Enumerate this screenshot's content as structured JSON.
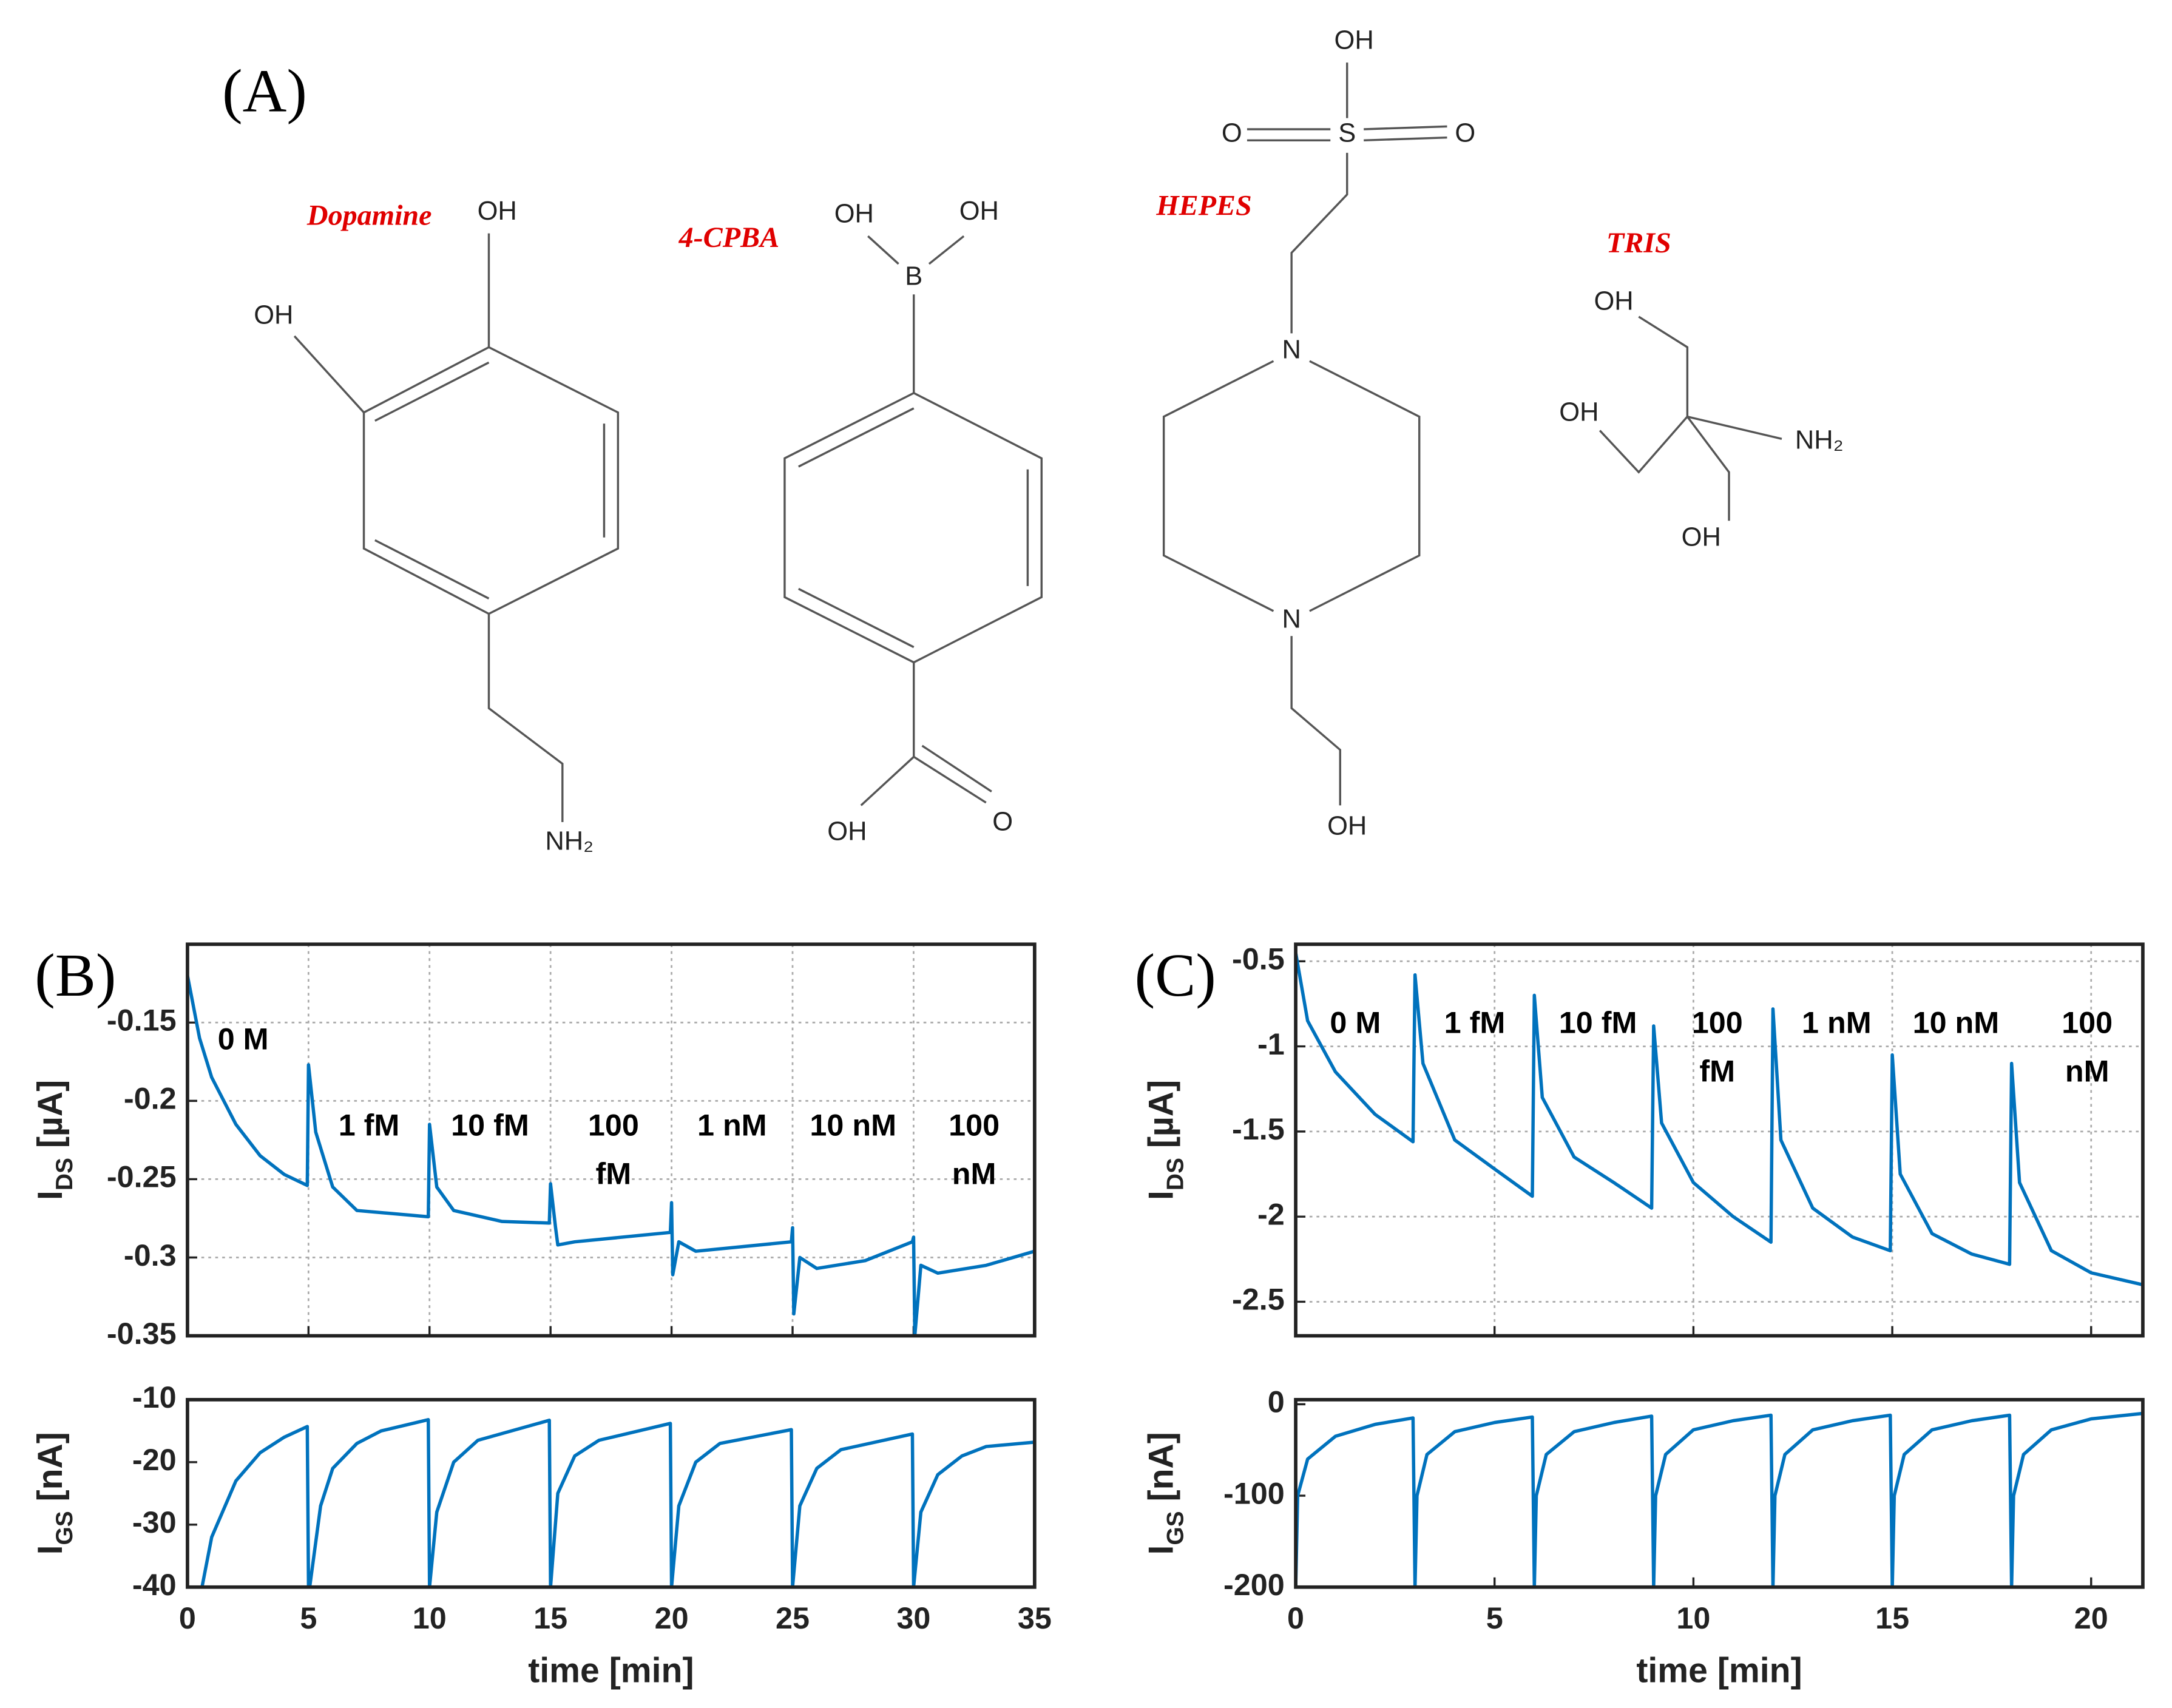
{
  "panel_a": {
    "label": "(A)",
    "molecules": [
      {
        "name": "Dopamine",
        "atoms": [
          "OH",
          "OH",
          "NH₂"
        ]
      },
      {
        "name": "4-CPBA",
        "atoms": [
          "OH",
          "OH",
          "B",
          "OH",
          "O"
        ]
      },
      {
        "name": "HEPES",
        "atoms": [
          "OH",
          "O",
          "S",
          "O",
          "N",
          "N",
          "OH"
        ]
      },
      {
        "name": "TRIS",
        "atoms": [
          "OH",
          "OH",
          "NH₂",
          "OH"
        ]
      }
    ]
  },
  "chart_data": [
    {
      "type": "line",
      "panel_label": "(B)",
      "ylabel": [
        "I",
        "DS",
        " [µA]"
      ],
      "xlim": [
        0,
        35
      ],
      "xticks": [
        0,
        5,
        10,
        15,
        20,
        25,
        30,
        35
      ],
      "xticklabels": false,
      "ylim": [
        -0.35,
        -0.1
      ],
      "yticks": [
        -0.35,
        -0.3,
        -0.25,
        -0.2,
        -0.15
      ],
      "grid": true,
      "annotations": [
        [
          "0 M"
        ],
        [
          "1 fM"
        ],
        [
          "10 fM"
        ],
        [
          "100",
          "fM"
        ],
        [
          "1 nM"
        ],
        [
          "10 nM"
        ],
        [
          "100",
          "nM"
        ]
      ],
      "series": [
        {
          "color": "#0072BD",
          "x": [
            0,
            0.5,
            1,
            2,
            3,
            4,
            4.95,
            5,
            5.3,
            6,
            7,
            9.95,
            10,
            10.3,
            11,
            13,
            14.95,
            15,
            15.2,
            15.3,
            16,
            19.95,
            20,
            20.05,
            20.3,
            21,
            24.95,
            25,
            25.05,
            25.3,
            26,
            28,
            29.95,
            30,
            30.05,
            30.3,
            31,
            33,
            35
          ],
          "values": [
            -0.12,
            -0.16,
            -0.185,
            -0.215,
            -0.235,
            -0.247,
            -0.254,
            -0.177,
            -0.22,
            -0.255,
            -0.27,
            -0.274,
            -0.215,
            -0.255,
            -0.27,
            -0.277,
            -0.278,
            -0.253,
            -0.28,
            -0.292,
            -0.29,
            -0.284,
            -0.265,
            -0.311,
            -0.29,
            -0.296,
            -0.29,
            -0.281,
            -0.336,
            -0.3,
            -0.307,
            -0.302,
            -0.29,
            -0.287,
            -0.35,
            -0.305,
            -0.31,
            -0.305,
            -0.296
          ]
        }
      ]
    },
    {
      "type": "line",
      "ylabel": [
        "I",
        "GS",
        " [nA]"
      ],
      "xlabel": "time [min]",
      "xlim": [
        0,
        35
      ],
      "xticks": [
        0,
        5,
        10,
        15,
        20,
        25,
        30,
        35
      ],
      "xticklabels": true,
      "ylim": [
        -40,
        -10
      ],
      "yticks": [
        -40,
        -30,
        -20,
        -10
      ],
      "grid": false,
      "series": [
        {
          "color": "#0072BD",
          "x": [
            0.6,
            1,
            2,
            3,
            4,
            4.95,
            5,
            5.05,
            5.5,
            6,
            7,
            8,
            9.95,
            10,
            10.3,
            11,
            12,
            14.95,
            15,
            15.3,
            16,
            17,
            19.95,
            20,
            20.3,
            21,
            22,
            24.95,
            25,
            25.3,
            26,
            27,
            29.95,
            30,
            30.3,
            31,
            32,
            33,
            35
          ],
          "values": [
            -40,
            -32,
            -23,
            -18.5,
            -16,
            -14.3,
            -40,
            -40,
            -27,
            -21,
            -17,
            -15,
            -13.2,
            -40,
            -28,
            -20,
            -16.5,
            -13.3,
            -40,
            -25,
            -19,
            -16.5,
            -13.8,
            -40,
            -27,
            -20,
            -17,
            -14.8,
            -40,
            -27,
            -21,
            -18,
            -15.5,
            -40,
            -28,
            -22,
            -19,
            -17.5,
            -16.8
          ]
        }
      ]
    },
    {
      "type": "line",
      "panel_label": "(C)",
      "ylabel": [
        "I",
        "DS",
        " [µA]"
      ],
      "xlim": [
        0,
        21.3
      ],
      "xticks": [
        0,
        5,
        10,
        15,
        20
      ],
      "xticklabels": false,
      "ylim": [
        -2.7,
        -0.4
      ],
      "yticks": [
        -2.5,
        -2,
        -1.5,
        -1,
        -0.5
      ],
      "grid": true,
      "annotations": [
        [
          "0 M"
        ],
        [
          "1 fM"
        ],
        [
          "10 fM"
        ],
        [
          "100",
          "fM"
        ],
        [
          "1 nM"
        ],
        [
          "10 nM"
        ],
        [
          "100",
          "nM"
        ]
      ],
      "series": [
        {
          "color": "#0072BD",
          "x": [
            0,
            0.3,
            1,
            2,
            2.95,
            3,
            3.2,
            4,
            5,
            5.95,
            6,
            6.2,
            7,
            8,
            8.95,
            9,
            9.2,
            10,
            11,
            11.95,
            12,
            12.2,
            13,
            14,
            14.95,
            15,
            15.2,
            16,
            17,
            17.95,
            18,
            18.2,
            19,
            20,
            21.3
          ],
          "values": [
            -0.45,
            -0.85,
            -1.15,
            -1.4,
            -1.56,
            -0.58,
            -1.1,
            -1.55,
            -1.72,
            -1.88,
            -0.7,
            -1.3,
            -1.65,
            -1.8,
            -1.95,
            -0.88,
            -1.45,
            -1.8,
            -2.0,
            -2.15,
            -0.78,
            -1.55,
            -1.95,
            -2.12,
            -2.2,
            -1.05,
            -1.75,
            -2.1,
            -2.22,
            -2.28,
            -1.1,
            -1.8,
            -2.2,
            -2.33,
            -2.4
          ]
        }
      ]
    },
    {
      "type": "line",
      "ylabel": [
        "I",
        "GS",
        " [nA]"
      ],
      "xlabel": "time [min]",
      "xlim": [
        0,
        21.3
      ],
      "xticks": [
        0,
        5,
        10,
        15,
        20
      ],
      "xticklabels": true,
      "ylim": [
        -200,
        5
      ],
      "yticks": [
        -200,
        -100,
        0
      ],
      "grid": false,
      "series": [
        {
          "color": "#0072BD",
          "x": [
            0,
            0.05,
            0.3,
            1,
            2,
            2.95,
            3,
            3.05,
            3.3,
            4,
            5,
            5.95,
            6,
            6.05,
            6.3,
            7,
            8,
            8.95,
            9,
            9.05,
            9.3,
            10,
            11,
            11.95,
            12,
            12.05,
            12.3,
            13,
            14,
            14.95,
            15,
            15.05,
            15.3,
            16,
            17,
            17.95,
            18,
            18.05,
            18.3,
            19,
            20,
            21.3
          ],
          "values": [
            -200,
            -100,
            -60,
            -35,
            -22,
            -15,
            -200,
            -100,
            -55,
            -30,
            -20,
            -14,
            -200,
            -100,
            -55,
            -30,
            -20,
            -13,
            -200,
            -100,
            -55,
            -28,
            -18,
            -12,
            -200,
            -100,
            -55,
            -28,
            -18,
            -12,
            -200,
            -100,
            -55,
            -28,
            -18,
            -12,
            -200,
            -100,
            -55,
            -28,
            -16,
            -10
          ]
        }
      ]
    }
  ]
}
